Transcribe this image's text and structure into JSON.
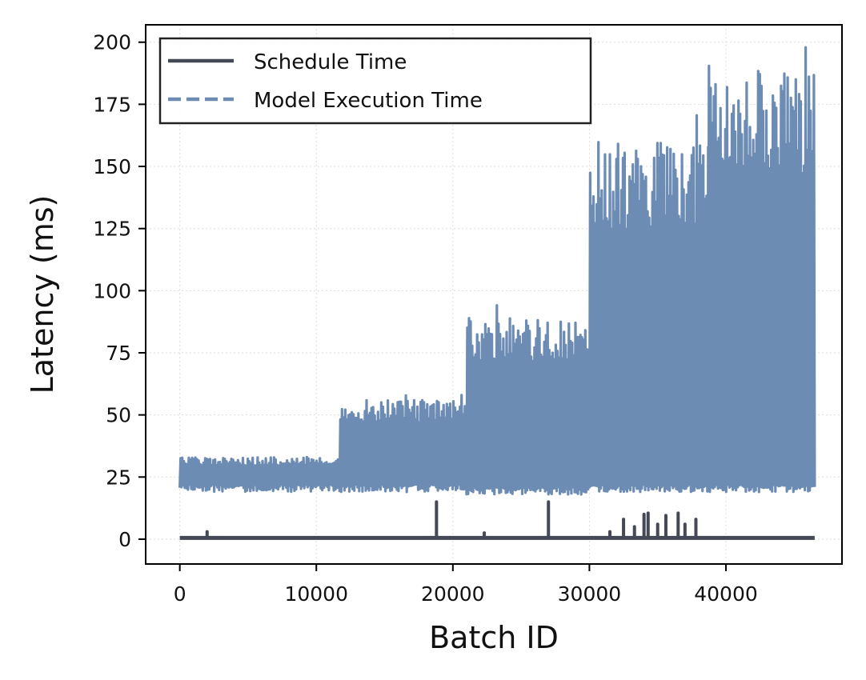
{
  "chart_data": {
    "type": "line",
    "xlabel": "Batch ID",
    "ylabel": "Latency (ms)",
    "xlim": [
      -2500,
      48500
    ],
    "ylim": [
      -10,
      207
    ],
    "x_ticks": [
      0,
      10000,
      20000,
      30000,
      40000
    ],
    "x_tick_labels": [
      "0",
      "10000",
      "20000",
      "30000",
      "40000"
    ],
    "y_ticks": [
      0,
      25,
      50,
      75,
      100,
      125,
      150,
      175,
      200
    ],
    "y_tick_labels": [
      "0",
      "25",
      "50",
      "75",
      "100",
      "125",
      "150",
      "175",
      "200"
    ],
    "grid": true,
    "legend_position": "upper-left",
    "series": [
      {
        "name": "Schedule Time",
        "style": "solid",
        "color": "#454855",
        "baseline": 0.5,
        "x_range": [
          0,
          46500
        ],
        "spikes": [
          {
            "x": 2000,
            "y": 3
          },
          {
            "x": 18800,
            "y": 15
          },
          {
            "x": 22300,
            "y": 2.5
          },
          {
            "x": 27000,
            "y": 15
          },
          {
            "x": 31500,
            "y": 3
          },
          {
            "x": 32500,
            "y": 8
          },
          {
            "x": 33300,
            "y": 5
          },
          {
            "x": 34000,
            "y": 10
          },
          {
            "x": 34300,
            "y": 10.5
          },
          {
            "x": 35000,
            "y": 6
          },
          {
            "x": 35600,
            "y": 9.5
          },
          {
            "x": 36500,
            "y": 10.5
          },
          {
            "x": 37000,
            "y": 6
          },
          {
            "x": 37800,
            "y": 8
          }
        ]
      },
      {
        "name": "Model Execution Time",
        "style": "dashed",
        "color": "#6c8cb4",
        "segments": [
          {
            "x_start": 0,
            "x_end": 11700,
            "low": 19,
            "high": 33,
            "peak": 42
          },
          {
            "x_start": 11700,
            "x_end": 21000,
            "low": 19,
            "high": 56,
            "peak": 62
          },
          {
            "x_start": 21000,
            "x_end": 30000,
            "low": 18,
            "high": 89,
            "peak": 106
          },
          {
            "x_start": 30000,
            "x_end": 38700,
            "low": 19,
            "high": 160,
            "peak": 174
          },
          {
            "x_start": 38700,
            "x_end": 46500,
            "low": 19,
            "high": 190,
            "peak": 198
          }
        ]
      }
    ]
  }
}
